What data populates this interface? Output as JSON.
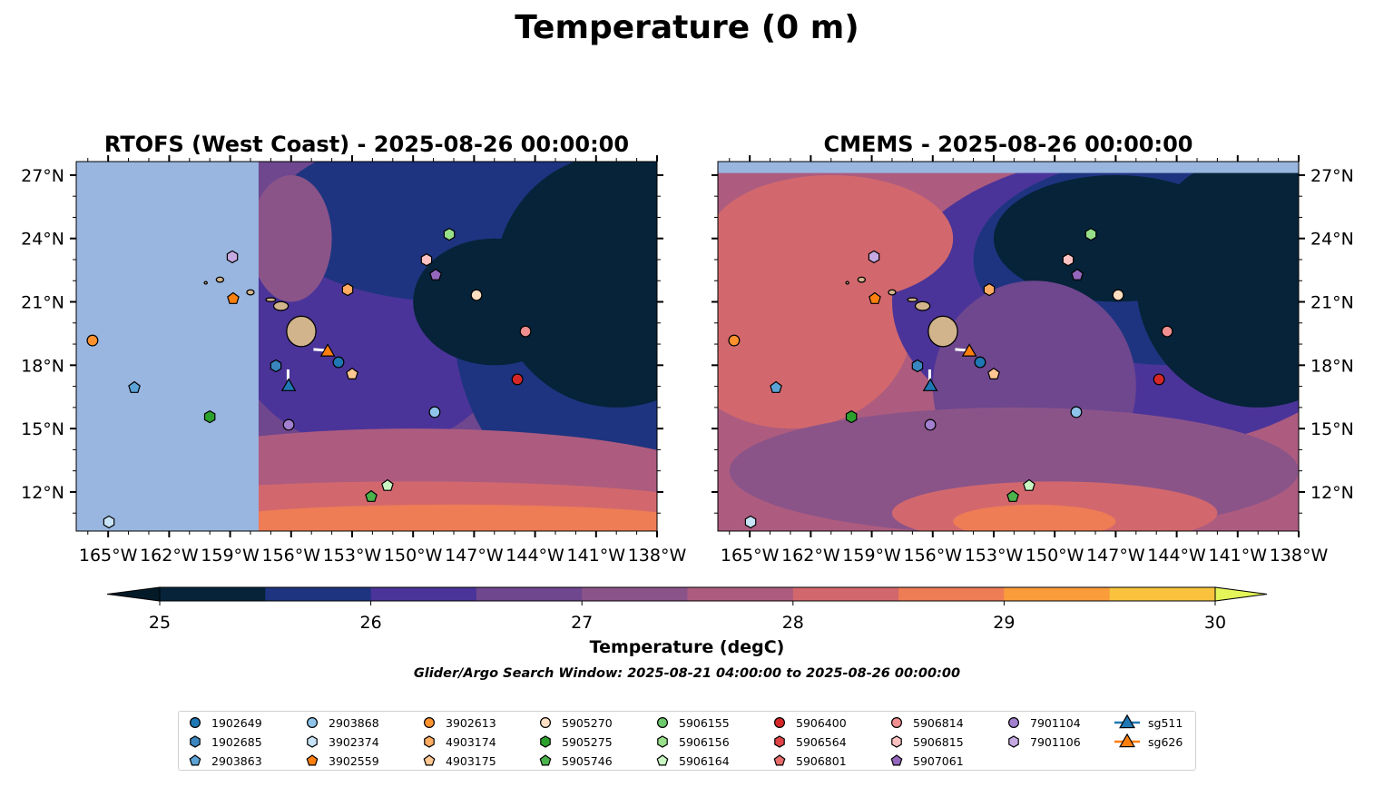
{
  "title": "Temperature (0 m)",
  "panels": [
    {
      "title": "RTOFS (West Coast) - 2025-08-26 00:00:00",
      "model_domain_lon_min": -157.6
    },
    {
      "title": "CMEMS - 2025-08-26 00:00:00",
      "model_domain_lat_max": 27.1
    }
  ],
  "map_extent": {
    "lon": [
      -166.57,
      -138.0
    ],
    "lat": [
      10.15,
      27.64
    ]
  },
  "x_ticks": [
    {
      "value": -165,
      "label": "165°W"
    },
    {
      "value": -162,
      "label": "162°W"
    },
    {
      "value": -159,
      "label": "159°W"
    },
    {
      "value": -156,
      "label": "156°W"
    },
    {
      "value": -153,
      "label": "153°W"
    },
    {
      "value": -150,
      "label": "150°W"
    },
    {
      "value": -147,
      "label": "147°W"
    },
    {
      "value": -144,
      "label": "144°W"
    },
    {
      "value": -141,
      "label": "141°W"
    },
    {
      "value": -138,
      "label": "138°W"
    }
  ],
  "y_ticks": [
    {
      "value": 12,
      "label": "12°N"
    },
    {
      "value": 15,
      "label": "15°N"
    },
    {
      "value": 18,
      "label": "18°N"
    },
    {
      "value": 21,
      "label": "21°N"
    },
    {
      "value": 24,
      "label": "24°N"
    },
    {
      "value": 27,
      "label": "27°N"
    }
  ],
  "colorbar": {
    "label": "Temperature (degC)",
    "range": [
      25,
      30
    ],
    "ticks": [
      "25",
      "26",
      "27",
      "28",
      "29",
      "30"
    ],
    "colors": [
      "#062339",
      "#1e3480",
      "#4b3499",
      "#6e478e",
      "#8b5489",
      "#ad5c7f",
      "#d2686d",
      "#ee7c55",
      "#fb9c3a",
      "#f9c33d"
    ],
    "under_color": "#041a28",
    "over_color": "#e4f55a"
  },
  "subtitle": "Glider/Argo Search Window: 2025-08-21 04:00:00 to 2025-08-26 00:00:00",
  "chart_data": {
    "type": "scatter",
    "series": [
      {
        "name": "1902649",
        "marker": "circle",
        "color": "#1f77b4",
        "lon": -153.67,
        "lat": 18.14
      },
      {
        "name": "1902685",
        "marker": "hexagon",
        "color": "#3a86bf",
        "lon": -156.75,
        "lat": 17.97
      },
      {
        "name": "2903863",
        "marker": "pentagon",
        "color": "#5ba3d6",
        "lon": -163.71,
        "lat": 16.94
      },
      {
        "name": "2903868",
        "marker": "circle",
        "color": "#8fc4ea",
        "lon": -148.94,
        "lat": 15.78
      },
      {
        "name": "3902374",
        "marker": "hexagon",
        "color": "#c8e5f7",
        "lon": -164.96,
        "lat": 10.58
      },
      {
        "name": "3902559",
        "marker": "pentagon",
        "color": "#ff7f0e",
        "lon": -158.85,
        "lat": 21.15
      },
      {
        "name": "3902613",
        "marker": "circle",
        "color": "#ff922e",
        "lon": -165.77,
        "lat": 19.17
      },
      {
        "name": "4903174",
        "marker": "hexagon",
        "color": "#ffab62",
        "lon": -153.22,
        "lat": 21.58
      },
      {
        "name": "4903175",
        "marker": "pentagon",
        "color": "#ffc791",
        "lon": -153.0,
        "lat": 17.58
      },
      {
        "name": "5905270",
        "marker": "circle",
        "color": "#ffdfc2",
        "lon": -146.88,
        "lat": 21.32
      },
      {
        "name": "5905275",
        "marker": "hexagon",
        "color": "#2ca02c",
        "lon": -160.0,
        "lat": 15.56
      },
      {
        "name": "5905746",
        "marker": "pentagon",
        "color": "#4bb34b",
        "lon": -152.06,
        "lat": 11.78
      },
      {
        "name": "5906155",
        "marker": "circle",
        "color": "#6cc96c",
        "lon": null,
        "lat": null
      },
      {
        "name": "5906156",
        "marker": "hexagon",
        "color": "#98df8a",
        "lon": -148.22,
        "lat": 24.2
      },
      {
        "name": "5906164",
        "marker": "pentagon",
        "color": "#c9f6c2",
        "lon": -151.26,
        "lat": 12.3
      },
      {
        "name": "5906400",
        "marker": "circle",
        "color": "#d62728",
        "lon": -144.87,
        "lat": 17.33
      },
      {
        "name": "5906564",
        "marker": "hexagon",
        "color": "#e04446",
        "lon": null,
        "lat": null
      },
      {
        "name": "5906801",
        "marker": "pentagon",
        "color": "#e86c6c",
        "lon": null,
        "lat": null
      },
      {
        "name": "5906814",
        "marker": "circle",
        "color": "#f08f8f",
        "lon": -144.47,
        "lat": 19.6
      },
      {
        "name": "5906815",
        "marker": "hexagon",
        "color": "#ffc2c2",
        "lon": -149.34,
        "lat": 22.99
      },
      {
        "name": "5907061",
        "marker": "pentagon",
        "color": "#9467bd",
        "lon": -148.89,
        "lat": 22.27
      },
      {
        "name": "7901104",
        "marker": "circle",
        "color": "#a27fcf",
        "lon": -156.12,
        "lat": 15.18
      },
      {
        "name": "7901106",
        "marker": "hexagon",
        "color": "#c7a9e2",
        "lon": -158.89,
        "lat": 23.13
      },
      {
        "name": "sg511",
        "marker": "triangle",
        "color": "#1f77b4",
        "lon": -156.12,
        "lat": 16.98
      },
      {
        "name": "sg626",
        "marker": "triangle",
        "color": "#ff7f0e",
        "lon": -154.2,
        "lat": 18.62
      }
    ]
  }
}
